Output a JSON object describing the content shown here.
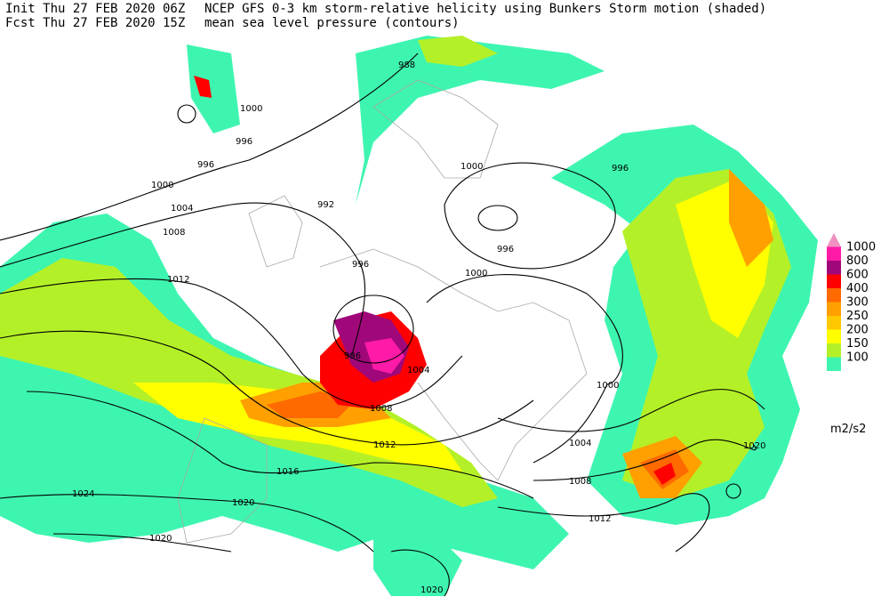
{
  "header": {
    "init": "Init  Thu 27 FEB 2020 06Z",
    "title": "NCEP GFS 0-3 km storm-relative helicity using Bunkers Storm motion (shaded)",
    "fcst": "Fcst Thu 27 FEB 2020 15Z",
    "subtitle": "mean sea level pressure (contours)"
  },
  "legend": {
    "labels": [
      "1000",
      "800",
      "600",
      "400",
      "300",
      "250",
      "200",
      "150",
      "100"
    ],
    "colors": [
      "#f090c0",
      "#ff1aa8",
      "#a0087a",
      "#ff0000",
      "#ff6a00",
      "#ffa000",
      "#ffc800",
      "#ffff00",
      "#b4f028",
      "#3ef5b0"
    ],
    "unit": "m2/s2"
  },
  "contour_labels": [
    "1000",
    "996",
    "996",
    "988",
    "1000",
    "1004",
    "992",
    "1008",
    "996",
    "1012",
    "1000",
    "996",
    "996",
    "1000",
    "996",
    "1004",
    "1008",
    "1012",
    "1016",
    "1020",
    "1024",
    "1020",
    "1020",
    "1000",
    "1004",
    "1008",
    "1012",
    "1020"
  ]
}
